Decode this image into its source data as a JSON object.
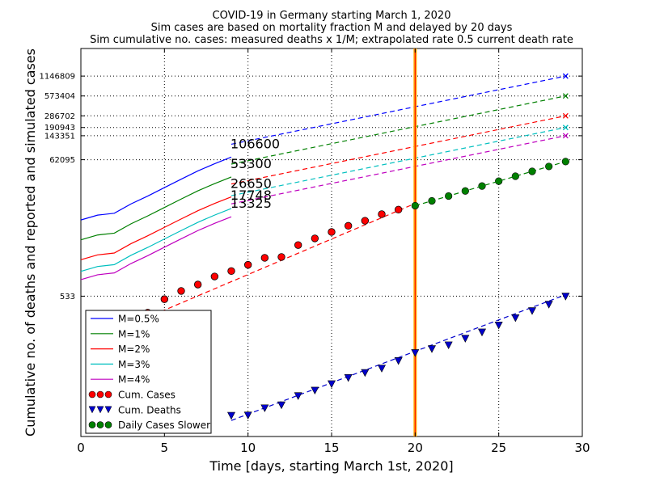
{
  "chart_data": {
    "type": "line",
    "title_lines": [
      "COVID-19 in Germany starting March 1, 2020",
      "Sim cases are based on mortality fraction M and delayed by 20 days",
      "Sim cumulative no. cases: measured deaths x 1/M; extrapolated rate 0.5 current death rate"
    ],
    "xlabel": "Time [days, starting March 1st, 2020]",
    "ylabel": "Cumulative no. of deaths and reported and simulated cases",
    "xlim": [
      0,
      30
    ],
    "x_ticks": [
      "0",
      "5",
      "10",
      "15",
      "20",
      "25",
      "30"
    ],
    "y_scale": "log",
    "ylim": [
      4,
      3000000
    ],
    "y_ticks": [
      {
        "value": 533,
        "label": "533"
      },
      {
        "value": 62095,
        "label": "62095"
      },
      {
        "value": 143351,
        "label": "143351"
      },
      {
        "value": 190943,
        "label": "190943"
      },
      {
        "value": 286702,
        "label": "286702"
      },
      {
        "value": 573404,
        "label": "573404"
      },
      {
        "value": 1146809,
        "label": "1146809"
      }
    ],
    "grid": true,
    "vertical_marker": {
      "x": 20,
      "color": "#ffa500"
    },
    "legend_position": "lower-left",
    "legend": [
      {
        "label": "M=0.5%",
        "color": "#0000ff",
        "kind": "line"
      },
      {
        "label": "M=1%",
        "color": "#008000",
        "kind": "line"
      },
      {
        "label": "M=2%",
        "color": "#ff0000",
        "kind": "line"
      },
      {
        "label": "M=3%",
        "color": "#00bfbf",
        "kind": "line"
      },
      {
        "label": "M=4%",
        "color": "#bf00bf",
        "kind": "line"
      },
      {
        "label": "Cum. Cases",
        "color": "#ff0000",
        "kind": "circle"
      },
      {
        "label": "Cum. Deaths",
        "color": "#0000cc",
        "kind": "triangle"
      },
      {
        "label": "Daily Cases Slower",
        "color": "#008000",
        "kind": "circle"
      }
    ],
    "sim_series": [
      {
        "name": "M=0.5%",
        "color": "#0000ff",
        "end_label": "106600",
        "solid_x": [
          0,
          1,
          2,
          3,
          4,
          5,
          6,
          7,
          8,
          9
        ],
        "solid_y": [
          7600,
          9000,
          9600,
          13300,
          17500,
          23500,
          31500,
          42000,
          54000,
          68000
        ],
        "dashed_from": [
          9,
          106600
        ],
        "dashed_to": [
          29,
          1146809
        ],
        "end_marker_y": 1146809
      },
      {
        "name": "M=1%",
        "color": "#008000",
        "end_label": "53300",
        "solid_x": [
          0,
          1,
          2,
          3,
          4,
          5,
          6,
          7,
          8,
          9
        ],
        "solid_y": [
          3800,
          4500,
          4800,
          6650,
          8750,
          11750,
          15750,
          21000,
          27000,
          34000
        ],
        "dashed_from": [
          9,
          53300
        ],
        "dashed_to": [
          29,
          573404
        ],
        "end_marker_y": 573404
      },
      {
        "name": "M=2%",
        "color": "#ff0000",
        "end_label": "26650",
        "solid_x": [
          0,
          1,
          2,
          3,
          4,
          5,
          6,
          7,
          8,
          9
        ],
        "solid_y": [
          1900,
          2250,
          2400,
          3325,
          4375,
          5875,
          7875,
          10500,
          13500,
          17000
        ],
        "dashed_from": [
          9,
          26650
        ],
        "dashed_to": [
          29,
          286702
        ],
        "end_marker_y": 286702
      },
      {
        "name": "M=3%",
        "color": "#00bfbf",
        "end_label": "17748",
        "solid_x": [
          0,
          1,
          2,
          3,
          4,
          5,
          6,
          7,
          8,
          9
        ],
        "solid_y": [
          1267,
          1500,
          1600,
          2217,
          2917,
          3917,
          5250,
          7000,
          9000,
          11333
        ],
        "dashed_from": [
          9,
          17748
        ],
        "dashed_to": [
          29,
          190943
        ],
        "end_marker_y": 190943
      },
      {
        "name": "M=4%",
        "color": "#bf00bf",
        "end_label": "13325",
        "solid_x": [
          0,
          1,
          2,
          3,
          4,
          5,
          6,
          7,
          8,
          9
        ],
        "solid_y": [
          950,
          1125,
          1200,
          1663,
          2188,
          2938,
          3938,
          5250,
          6750,
          8500
        ],
        "dashed_from": [
          9,
          13325
        ],
        "dashed_to": [
          29,
          143351
        ],
        "end_marker_y": 143351
      }
    ],
    "cum_cases": {
      "name": "Cum. Cases",
      "color": "#ff0000",
      "x": [
        4,
        5,
        6,
        7,
        8,
        9,
        10,
        11,
        12,
        13,
        14,
        15,
        16,
        17,
        18,
        19
      ],
      "y": [
        300,
        480,
        640,
        800,
        1060,
        1280,
        1590,
        2030,
        2090,
        3170,
        4000,
        5000,
        6200,
        7400,
        9300,
        10900
      ],
      "fit_from": [
        3,
        200
      ],
      "fit_to": [
        20,
        13500
      ]
    },
    "cum_deaths": {
      "name": "Cum. Deaths",
      "color": "#0000cc",
      "x": [
        9,
        10,
        11,
        12,
        13,
        14,
        15,
        16,
        17,
        18,
        19,
        20,
        21,
        22,
        23,
        24,
        25,
        26,
        27,
        28,
        29
      ],
      "y": [
        8.3,
        8.4,
        10.8,
        12.0,
        16.5,
        20.0,
        25.0,
        31.0,
        37.0,
        43.0,
        56.0,
        74.0,
        85.0,
        97.0,
        122.0,
        152.0,
        194.0,
        250.0,
        320.0,
        400.0,
        530.0
      ],
      "fit_from": [
        9,
        7
      ],
      "fit_to": [
        29,
        560
      ]
    },
    "daily_cases_slower": {
      "name": "Daily Cases Slower",
      "color": "#008000",
      "x": [
        20,
        21,
        22,
        23,
        24,
        25,
        26,
        27,
        28,
        29
      ],
      "y": [
        12500,
        14800,
        17500,
        20900,
        24800,
        29400,
        34900,
        41400,
        49100,
        58200
      ]
    }
  }
}
